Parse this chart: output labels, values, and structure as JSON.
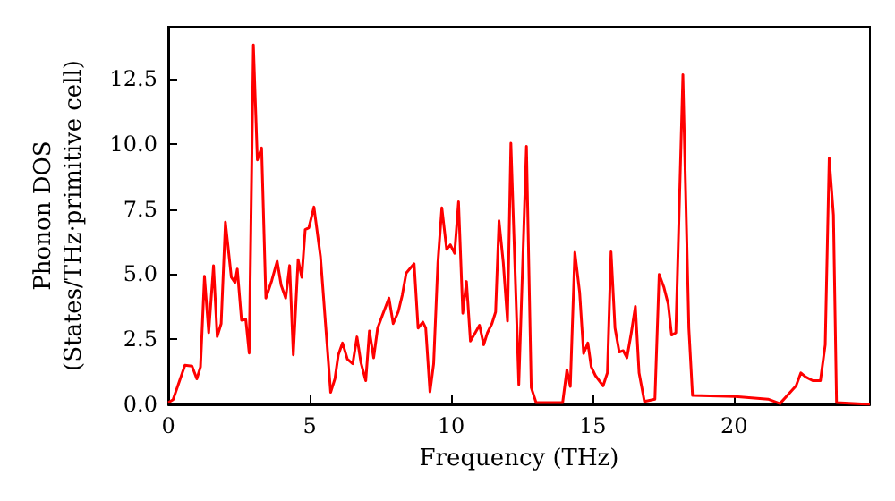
{
  "chart_data": {
    "type": "line",
    "xlabel": "Frequency (THz)",
    "ylabel": "Phonon DOS\n(States/THz·primitive cell)",
    "xlim": [
      0,
      24.8
    ],
    "xticks": [
      0,
      5,
      10,
      15,
      20
    ],
    "ylim": [
      0,
      14.5
    ],
    "yticks": [
      {
        "value": 0,
        "label": "0.0"
      },
      {
        "value": 2.5,
        "label": "2.5"
      },
      {
        "value": 5,
        "label": "5.0"
      },
      {
        "value": 7.5,
        "label": "7.5"
      },
      {
        "value": 10,
        "label": "10.0"
      },
      {
        "value": 12.5,
        "label": "12.5"
      }
    ],
    "grid": false,
    "marker": "none",
    "line_style": "solid",
    "series": [
      {
        "color": "#ff0000",
        "x": [
          0,
          0.17,
          0.59,
          0.84,
          1.01,
          1.14,
          1.28,
          1.43,
          1.6,
          1.73,
          1.87,
          2.02,
          2.23,
          2.36,
          2.44,
          2.59,
          2.74,
          2.86,
          3.01,
          3.15,
          3.3,
          3.45,
          3.66,
          3.85,
          3.99,
          4.15,
          4.29,
          4.42,
          4.59,
          4.72,
          4.84,
          4.97,
          5.15,
          5.38,
          5.74,
          5.89,
          6.01,
          6.16,
          6.33,
          6.52,
          6.67,
          6.81,
          6.98,
          7.11,
          7.26,
          7.4,
          7.57,
          7.8,
          7.95,
          8.13,
          8.27,
          8.41,
          8.69,
          8.83,
          9.0,
          9.1,
          9.25,
          9.38,
          9.53,
          9.67,
          9.84,
          9.97,
          10.12,
          10.26,
          10.41,
          10.54,
          10.68,
          10.85,
          11.0,
          11.15,
          11.28,
          11.44,
          11.57,
          11.69,
          11.84,
          11.99,
          12.11,
          12.39,
          12.66,
          12.83,
          13.0,
          13.94,
          14.09,
          14.21,
          14.37,
          14.54,
          14.68,
          14.83,
          14.95,
          15.1,
          15.37,
          15.52,
          15.65,
          15.79,
          15.94,
          16.08,
          16.21,
          16.36,
          16.51,
          16.64,
          16.83,
          17.2,
          17.35,
          17.52,
          17.67,
          17.79,
          17.94,
          18.19,
          18.4,
          18.53,
          20.04,
          21.2,
          21.62,
          22.04,
          22.19,
          22.36,
          22.53,
          22.78,
          23.05,
          23.22,
          23.36,
          23.51,
          23.62,
          24.8
        ],
        "values": [
          0.07,
          0.18,
          1.5,
          1.47,
          0.98,
          1.44,
          4.92,
          2.75,
          5.33,
          2.6,
          3.1,
          7.0,
          4.88,
          4.68,
          5.2,
          3.23,
          3.26,
          1.97,
          13.8,
          9.39,
          9.85,
          4.08,
          4.76,
          5.5,
          4.58,
          4.08,
          5.33,
          1.9,
          5.56,
          4.88,
          6.71,
          6.78,
          7.58,
          5.68,
          0.46,
          0.98,
          1.9,
          2.36,
          1.74,
          1.56,
          2.59,
          1.6,
          0.91,
          2.82,
          1.79,
          2.93,
          3.43,
          4.08,
          3.1,
          3.56,
          4.19,
          5.04,
          5.4,
          2.93,
          3.16,
          2.93,
          0.48,
          1.56,
          5.45,
          7.55,
          5.95,
          6.13,
          5.8,
          7.78,
          3.5,
          4.72,
          2.43,
          2.75,
          3.04,
          2.29,
          2.75,
          3.1,
          3.55,
          7.05,
          5.45,
          3.2,
          10.03,
          0.76,
          9.91,
          0.64,
          0.07,
          0.07,
          1.33,
          0.69,
          5.84,
          4.3,
          1.95,
          2.36,
          1.44,
          1.1,
          0.71,
          1.21,
          5.86,
          2.93,
          2.01,
          2.06,
          1.79,
          2.71,
          3.76,
          1.21,
          0.11,
          0.2,
          4.99,
          4.49,
          3.85,
          2.66,
          2.75,
          12.66,
          2.93,
          0.34,
          0.3,
          0.2,
          0.03,
          0.53,
          0.71,
          1.21,
          1.05,
          0.91,
          0.91,
          2.29,
          9.46,
          7.28,
          0.07,
          0
        ]
      }
    ]
  }
}
